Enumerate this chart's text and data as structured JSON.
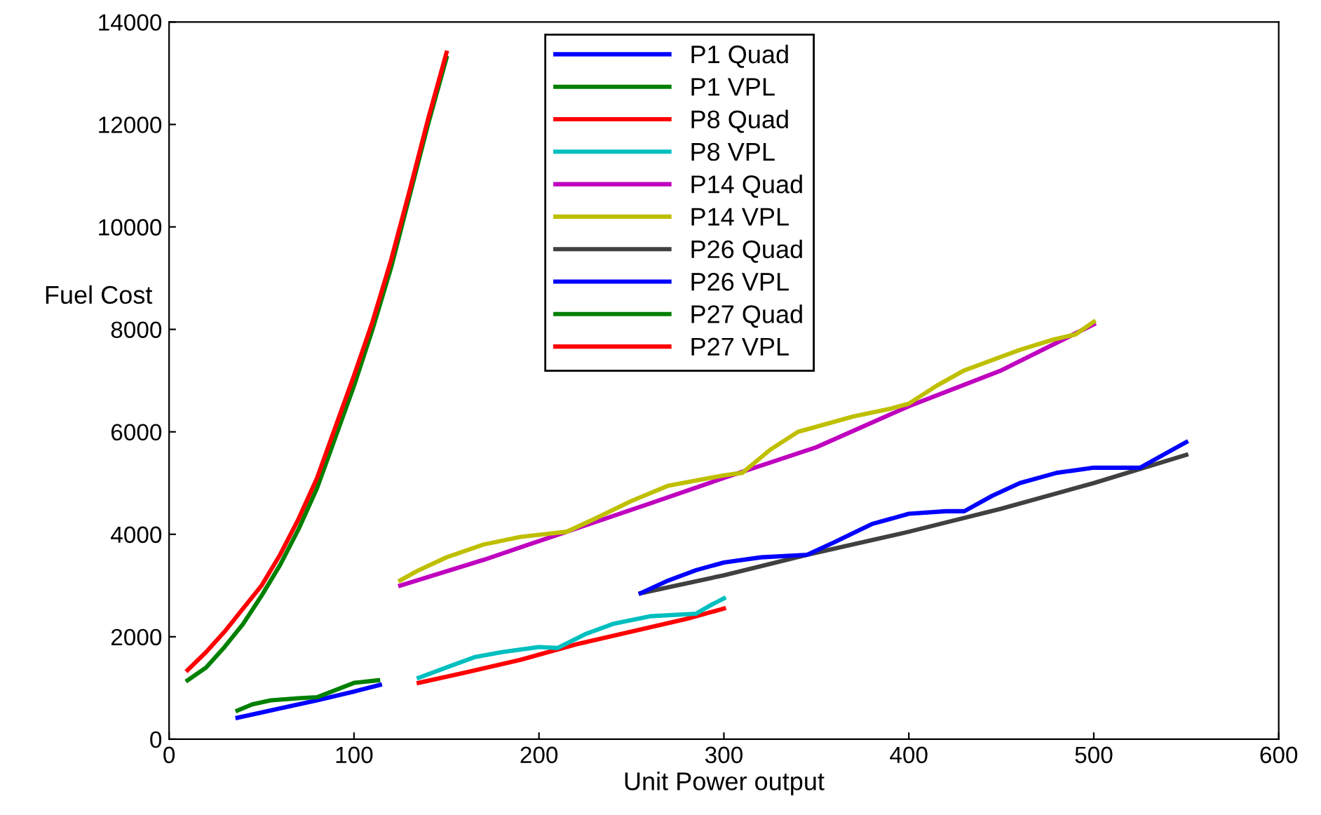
{
  "chart_data": {
    "type": "line",
    "xlabel": "Unit Power output",
    "ylabel": "Fuel Cost",
    "xlim": [
      0,
      600
    ],
    "ylim": [
      0,
      14000
    ],
    "xticks": [
      0,
      100,
      200,
      300,
      400,
      500,
      600
    ],
    "yticks": [
      0,
      2000,
      4000,
      6000,
      8000,
      10000,
      12000,
      14000
    ],
    "grid": false,
    "legend": "top",
    "marker": "none",
    "line_style": "solid",
    "series": [
      {
        "name": "P1 Quad",
        "color": "#0000ff",
        "x": [
          37,
          60,
          80,
          100,
          114
        ],
        "values": [
          420,
          600,
          760,
          930,
          1060
        ]
      },
      {
        "name": "P1 VPL",
        "color": "#008000",
        "x": [
          37,
          45,
          55,
          70,
          80,
          90,
          100,
          113
        ],
        "values": [
          560,
          680,
          760,
          800,
          820,
          960,
          1100,
          1150
        ]
      },
      {
        "name": "P8 Quad",
        "color": "#ff0000",
        "x": [
          135,
          160,
          190,
          220,
          250,
          280,
          300
        ],
        "values": [
          1100,
          1300,
          1550,
          1850,
          2100,
          2350,
          2550
        ]
      },
      {
        "name": "P8 VPL",
        "color": "#00bfbf",
        "x": [
          135,
          150,
          165,
          180,
          200,
          210,
          225,
          240,
          260,
          285,
          292,
          300
        ],
        "values": [
          1200,
          1400,
          1600,
          1700,
          1800,
          1780,
          2050,
          2250,
          2400,
          2450,
          2600,
          2750
        ]
      },
      {
        "name": "P14 Quad",
        "color": "#bf00bf",
        "x": [
          125,
          170,
          215,
          260,
          300,
          350,
          400,
          450,
          500
        ],
        "values": [
          3000,
          3500,
          4050,
          4600,
          5100,
          5700,
          6500,
          7200,
          8100
        ]
      },
      {
        "name": "P14 VPL",
        "color": "#bfbf00",
        "x": [
          125,
          135,
          150,
          170,
          190,
          215,
          230,
          250,
          270,
          300,
          310,
          325,
          340,
          370,
          390,
          400,
          415,
          430,
          460,
          478,
          490,
          500
        ],
        "values": [
          3100,
          3300,
          3550,
          3800,
          3950,
          4050,
          4300,
          4650,
          4950,
          5150,
          5200,
          5650,
          6000,
          6300,
          6450,
          6550,
          6900,
          7200,
          7600,
          7800,
          7900,
          8150
        ]
      },
      {
        "name": "P26 Quad",
        "color": "#404040",
        "x": [
          255,
          300,
          345,
          400,
          450,
          500,
          550
        ],
        "values": [
          2850,
          3200,
          3600,
          4050,
          4500,
          5000,
          5550
        ]
      },
      {
        "name": "P26 VPL",
        "color": "#0000ff",
        "x": [
          255,
          270,
          285,
          300,
          320,
          345,
          360,
          380,
          400,
          420,
          430,
          445,
          460,
          480,
          500,
          525,
          540,
          550
        ],
        "values": [
          2850,
          3100,
          3300,
          3450,
          3550,
          3600,
          3850,
          4200,
          4400,
          4450,
          4450,
          4750,
          5000,
          5200,
          5300,
          5300,
          5600,
          5800
        ]
      },
      {
        "name": "P27 Quad",
        "color": "#008000",
        "x": [
          10,
          20,
          30,
          40,
          50,
          60,
          70,
          80,
          90,
          100,
          110,
          120,
          130,
          140,
          150
        ],
        "values": [
          1150,
          1400,
          1800,
          2250,
          2800,
          3400,
          4100,
          4900,
          5900,
          6900,
          8000,
          9200,
          10600,
          12000,
          13300
        ]
      },
      {
        "name": "P27 VPL",
        "color": "#ff0000",
        "x": [
          10,
          20,
          30,
          40,
          50,
          60,
          70,
          80,
          90,
          100,
          110,
          120,
          130,
          140,
          150
        ],
        "values": [
          1350,
          1700,
          2100,
          2550,
          3000,
          3600,
          4300,
          5100,
          6100,
          7100,
          8150,
          9350,
          10700,
          12100,
          13400
        ]
      }
    ]
  }
}
